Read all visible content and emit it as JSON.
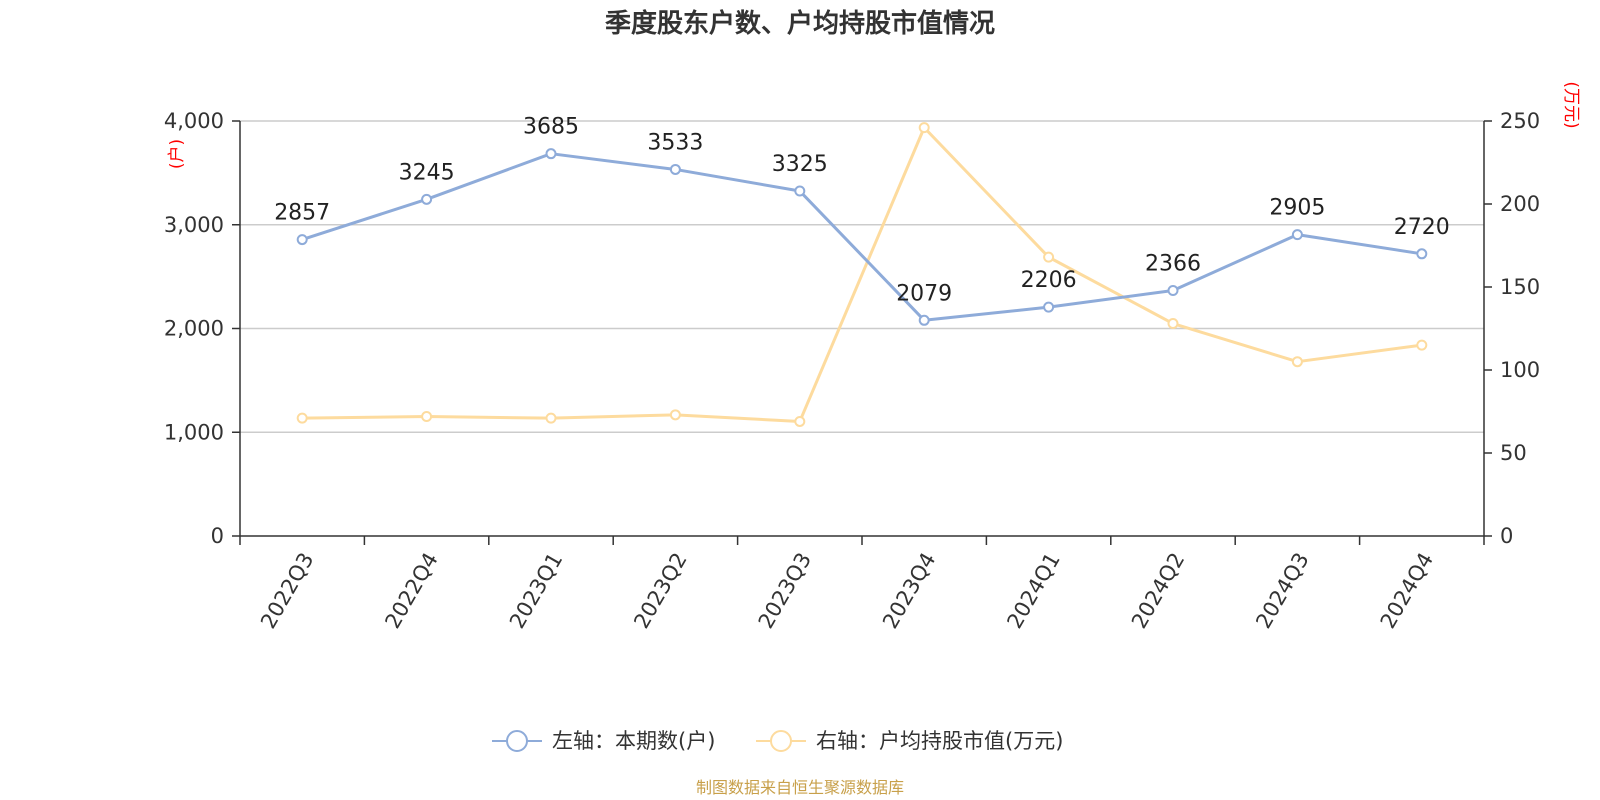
{
  "chart_data": {
    "type": "line",
    "title": "季度股东户数、户均持股市值情况",
    "categories": [
      "2022Q3",
      "2022Q4",
      "2023Q1",
      "2023Q2",
      "2023Q3",
      "2023Q4",
      "2024Q1",
      "2024Q2",
      "2024Q3",
      "2024Q4"
    ],
    "left_axis": {
      "unit": "(户)",
      "ylim": [
        0,
        4000
      ],
      "ticks": [
        "0",
        "1,000",
        "2,000",
        "3,000",
        "4,000"
      ],
      "tick_values": [
        0,
        1000,
        2000,
        3000,
        4000
      ]
    },
    "right_axis": {
      "unit": "(万元)",
      "ylim": [
        0,
        250
      ],
      "ticks": [
        "0",
        "50",
        "100",
        "150",
        "200",
        "250"
      ],
      "tick_values": [
        0,
        50,
        100,
        150,
        200,
        250
      ]
    },
    "series": [
      {
        "name": "左轴：本期数(户)",
        "axis": "left",
        "color": "#8eabd9",
        "values": [
          2857,
          3245,
          3685,
          3533,
          3325,
          2079,
          2206,
          2366,
          2905,
          2720
        ],
        "labels": [
          "2857",
          "3245",
          "3685",
          "3533",
          "3325",
          "2079",
          "2206",
          "2366",
          "2905",
          "2720"
        ]
      },
      {
        "name": "右轴：户均持股市值(万元)",
        "axis": "right",
        "color": "#fddb9e",
        "values": [
          71,
          72,
          71,
          73,
          69,
          246,
          168,
          128,
          105,
          115
        ]
      }
    ],
    "grid": true,
    "legend_position": "bottom-center"
  },
  "source": "制图数据来自恒生聚源数据库"
}
